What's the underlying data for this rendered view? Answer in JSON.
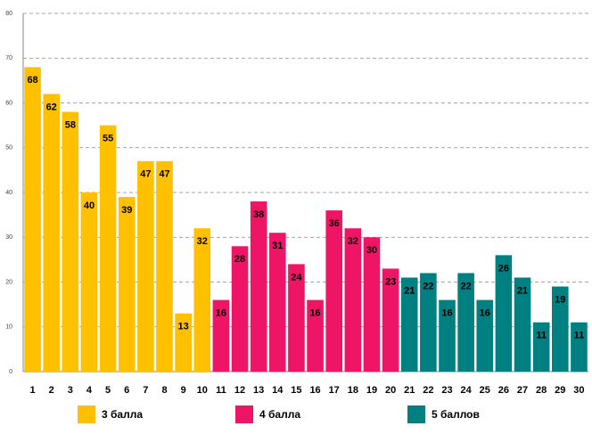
{
  "chart_data": {
    "type": "bar",
    "categories": [
      "1",
      "2",
      "3",
      "4",
      "5",
      "6",
      "7",
      "8",
      "9",
      "10",
      "11",
      "12",
      "13",
      "14",
      "15",
      "16",
      "17",
      "18",
      "19",
      "20",
      "21",
      "22",
      "23",
      "24",
      "25",
      "26",
      "27",
      "28",
      "29",
      "30"
    ],
    "series": [
      {
        "name": "3 балла",
        "color": "#ffc000",
        "values": [
          68,
          62,
          58,
          40,
          55,
          39,
          47,
          47,
          13,
          32,
          null,
          null,
          null,
          null,
          null,
          null,
          null,
          null,
          null,
          null,
          null,
          null,
          null,
          null,
          null,
          null,
          null,
          null,
          null,
          null
        ]
      },
      {
        "name": "4 балла",
        "color": "#ee1566",
        "values": [
          null,
          null,
          null,
          null,
          null,
          null,
          null,
          null,
          null,
          null,
          16,
          28,
          38,
          31,
          24,
          16,
          36,
          32,
          30,
          23,
          null,
          null,
          null,
          null,
          null,
          null,
          null,
          null,
          null,
          null
        ]
      },
      {
        "name": "5 баллов",
        "color": "#008080",
        "values": [
          null,
          null,
          null,
          null,
          null,
          null,
          null,
          null,
          null,
          null,
          null,
          null,
          null,
          null,
          null,
          null,
          null,
          null,
          null,
          null,
          21,
          22,
          16,
          22,
          16,
          26,
          21,
          11,
          19,
          11
        ]
      }
    ],
    "ylim": [
      0,
      80
    ],
    "yticks": [
      0,
      10,
      20,
      30,
      40,
      50,
      60,
      70,
      80
    ],
    "grid": true
  }
}
